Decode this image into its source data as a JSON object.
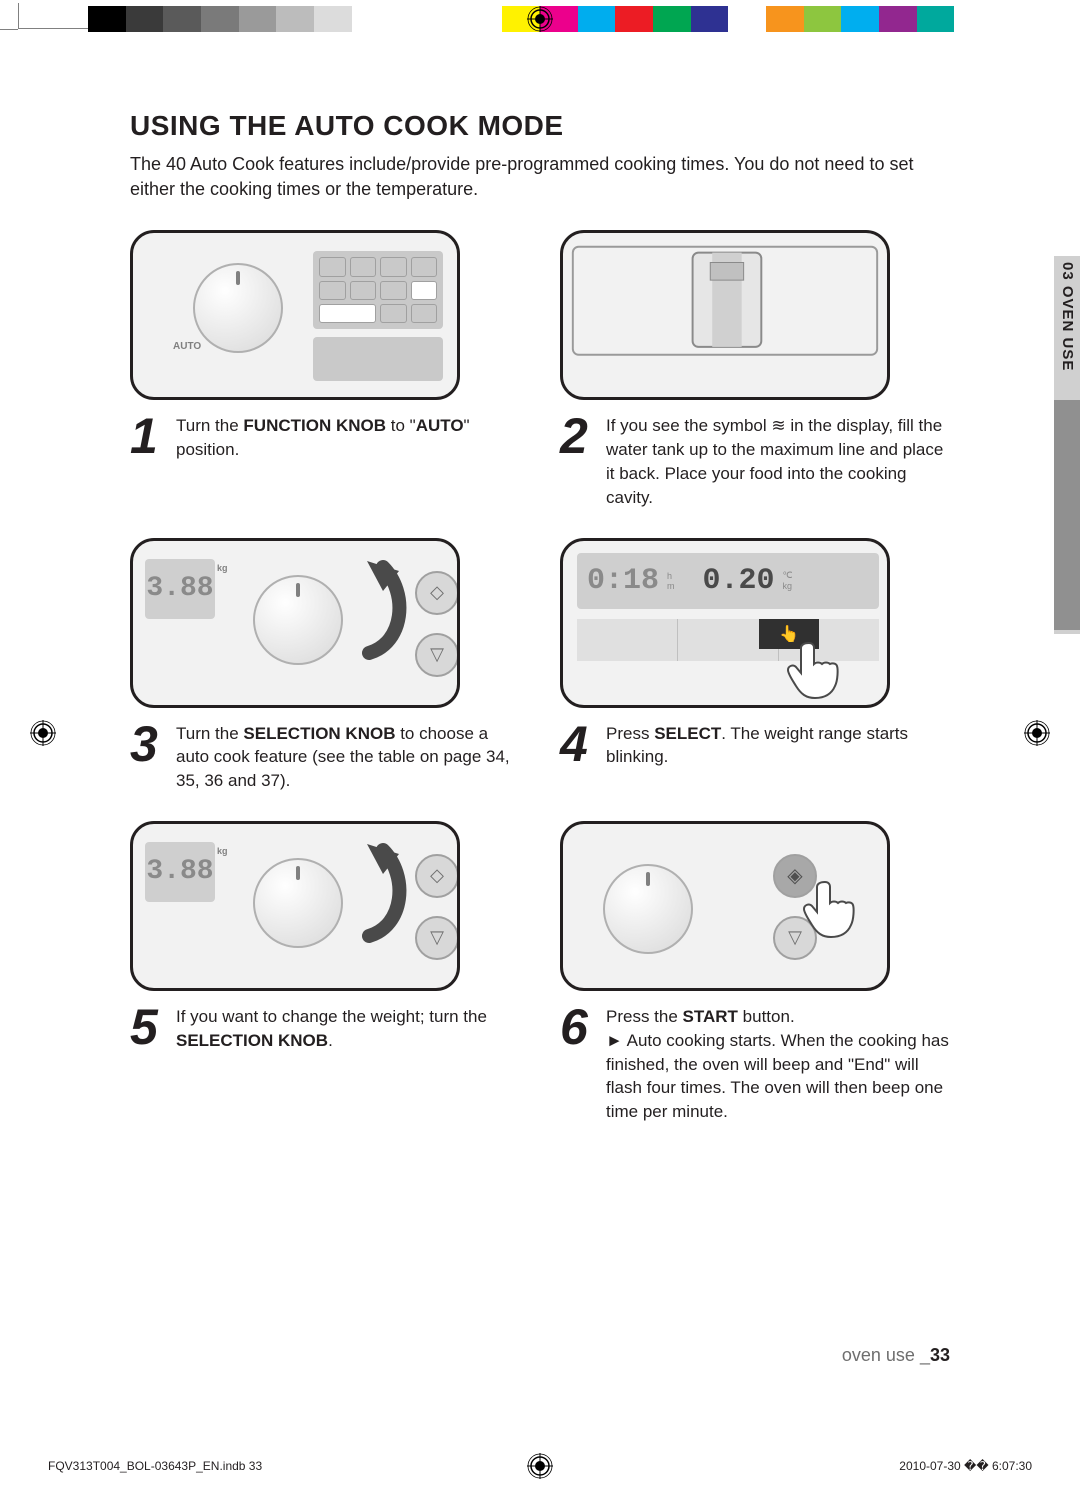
{
  "calibration_colors": [
    "#000000",
    "#3a3a3a",
    "#5a5a5a",
    "#7a7a7a",
    "#9a9a9a",
    "#bcbcbc",
    "#dcdcdc",
    "#ffffff",
    "#ffffff",
    "#ffffff",
    "#ffffff",
    "#fff200",
    "#ec008c",
    "#00adee",
    "#ec1c24",
    "#00a651",
    "#2e3192",
    "#ffffff",
    "#f7941d",
    "#8dc63f",
    "#00aeef",
    "#92278f",
    "#00a99d",
    "#ffffff"
  ],
  "heading": "USING THE AUTO COOK MODE",
  "intro": "The 40 Auto Cook features include/provide pre-programmed cooking times. You do not need to set either the cooking times or the temperature.",
  "side_tab": "03 OVEN USE",
  "steps": {
    "s1": {
      "num": "1",
      "html": "Turn the <b>FUNCTION KNOB</b> to \"<b>AUTO</b>\" position."
    },
    "s2": {
      "num": "2",
      "html": "If you see the symbol <span class='steam-inline'>≋</span> in the display, fill the water tank up to the maximum line and place it back. Place your food into the cooking cavity."
    },
    "s3": {
      "num": "3",
      "html": "Turn the <b>SELECTION KNOB</b> to choose a auto cook feature (see the table on page 34, 35, 36 and 37)."
    },
    "s4": {
      "num": "4",
      "html": "Press <b>SELECT</b>. The weight range starts blinking."
    },
    "s5": {
      "num": "5",
      "html": "If you want to change the weight; turn the <b>SELECTION KNOB</b>."
    },
    "s6": {
      "num": "6",
      "html": "Press the <b>START</b> button.<br><span class='arrow'>►</span> Auto cooking starts. When the cooking has finished, the oven will beep and \"End\" will flash four times. The oven will then beep one time per minute."
    }
  },
  "footer": {
    "section": "oven use _",
    "page": "33"
  },
  "print_footer": {
    "left": "FQV313T004_BOL-03643P_EN.indb   33",
    "right": "2010-07-30   �� 6:07:30"
  },
  "illus": {
    "auto_text": "AUTO",
    "digits_388": "3.88",
    "digits_time": "0:18",
    "digits_weight": "0.20",
    "unit_kg": "kg",
    "unit_c": "℃",
    "unit_h": "h",
    "unit_m": "m"
  }
}
